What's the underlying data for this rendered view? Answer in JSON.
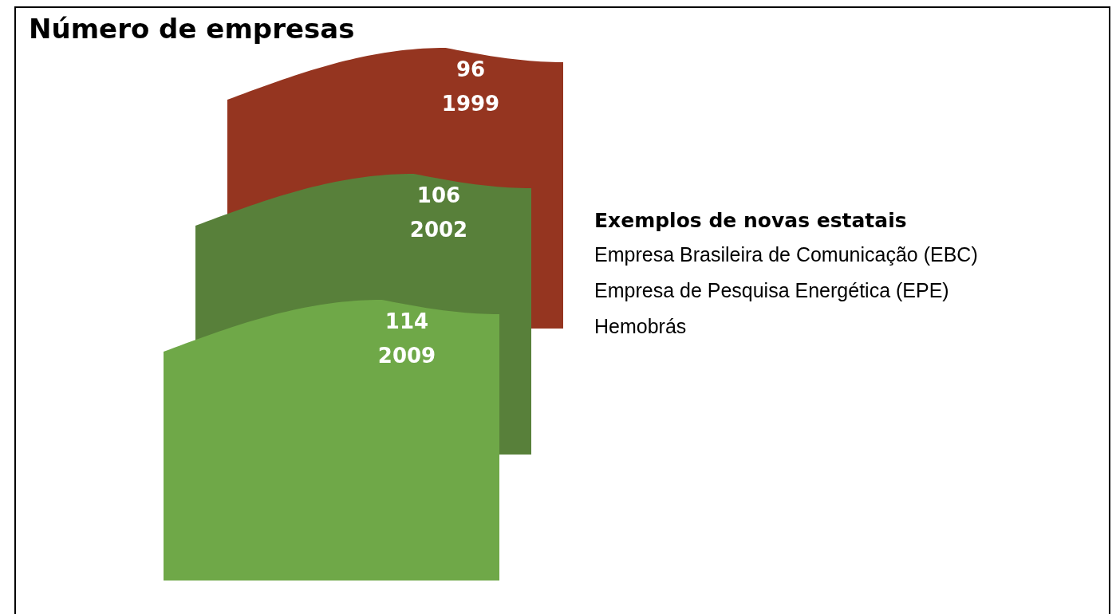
{
  "chart_data": {
    "type": "other",
    "title": "Número de empresas",
    "categories": [
      "1999",
      "2002",
      "2009"
    ],
    "values": [
      96,
      106,
      114
    ],
    "colors": [
      "#953520",
      "#58803a",
      "#6fa848"
    ],
    "data_labels": true,
    "annotations": [
      "Exemplos de novas estatais",
      "Empresa Brasileira de Comunicação (EBC)",
      "Empresa de Pesquisa Energética (EPE)",
      "Hemobrás"
    ]
  }
}
